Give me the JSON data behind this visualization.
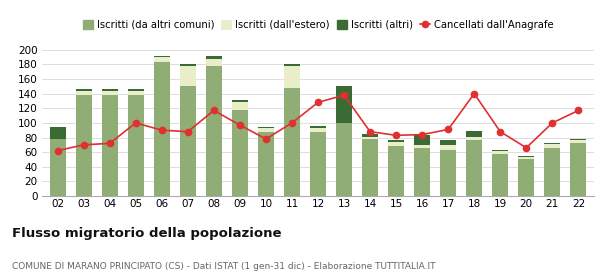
{
  "years": [
    "02",
    "03",
    "04",
    "05",
    "06",
    "07",
    "08",
    "09",
    "10",
    "11",
    "12",
    "13",
    "14",
    "15",
    "16",
    "17",
    "18",
    "19",
    "20",
    "21",
    "22"
  ],
  "iscritti_comuni": [
    78,
    138,
    138,
    138,
    183,
    150,
    178,
    118,
    88,
    148,
    88,
    100,
    78,
    68,
    65,
    63,
    76,
    58,
    50,
    65,
    73
  ],
  "iscritti_estero": [
    0,
    5,
    5,
    5,
    7,
    28,
    10,
    10,
    5,
    30,
    5,
    0,
    3,
    6,
    5,
    7,
    5,
    3,
    3,
    6,
    3
  ],
  "iscritti_altri": [
    16,
    4,
    3,
    3,
    2,
    2,
    3,
    3,
    2,
    3,
    3,
    50,
    4,
    3,
    13,
    7,
    8,
    2,
    2,
    2,
    2
  ],
  "cancellati": [
    62,
    70,
    72,
    100,
    90,
    88,
    117,
    97,
    78,
    100,
    128,
    138,
    88,
    83,
    84,
    91,
    140,
    88,
    66,
    100,
    117
  ],
  "color_comuni": "#8fad74",
  "color_estero": "#e8edca",
  "color_altri": "#3a6b35",
  "color_cancellati": "#e03030",
  "ylabel_max": 200,
  "ylabel_min": 0,
  "ylabel_step": 20,
  "title1": "Flusso migratorio della popolazione",
  "title2": "COMUNE DI MARANO PRINCIPATO (CS) - Dati ISTAT (1 gen-31 dic) - Elaborazione TUTTITALIA.IT",
  "legend_labels": [
    "Iscritti (da altri comuni)",
    "Iscritti (dall'estero)",
    "Iscritti (altri)",
    "Cancellati dall'Anagrafe"
  ]
}
